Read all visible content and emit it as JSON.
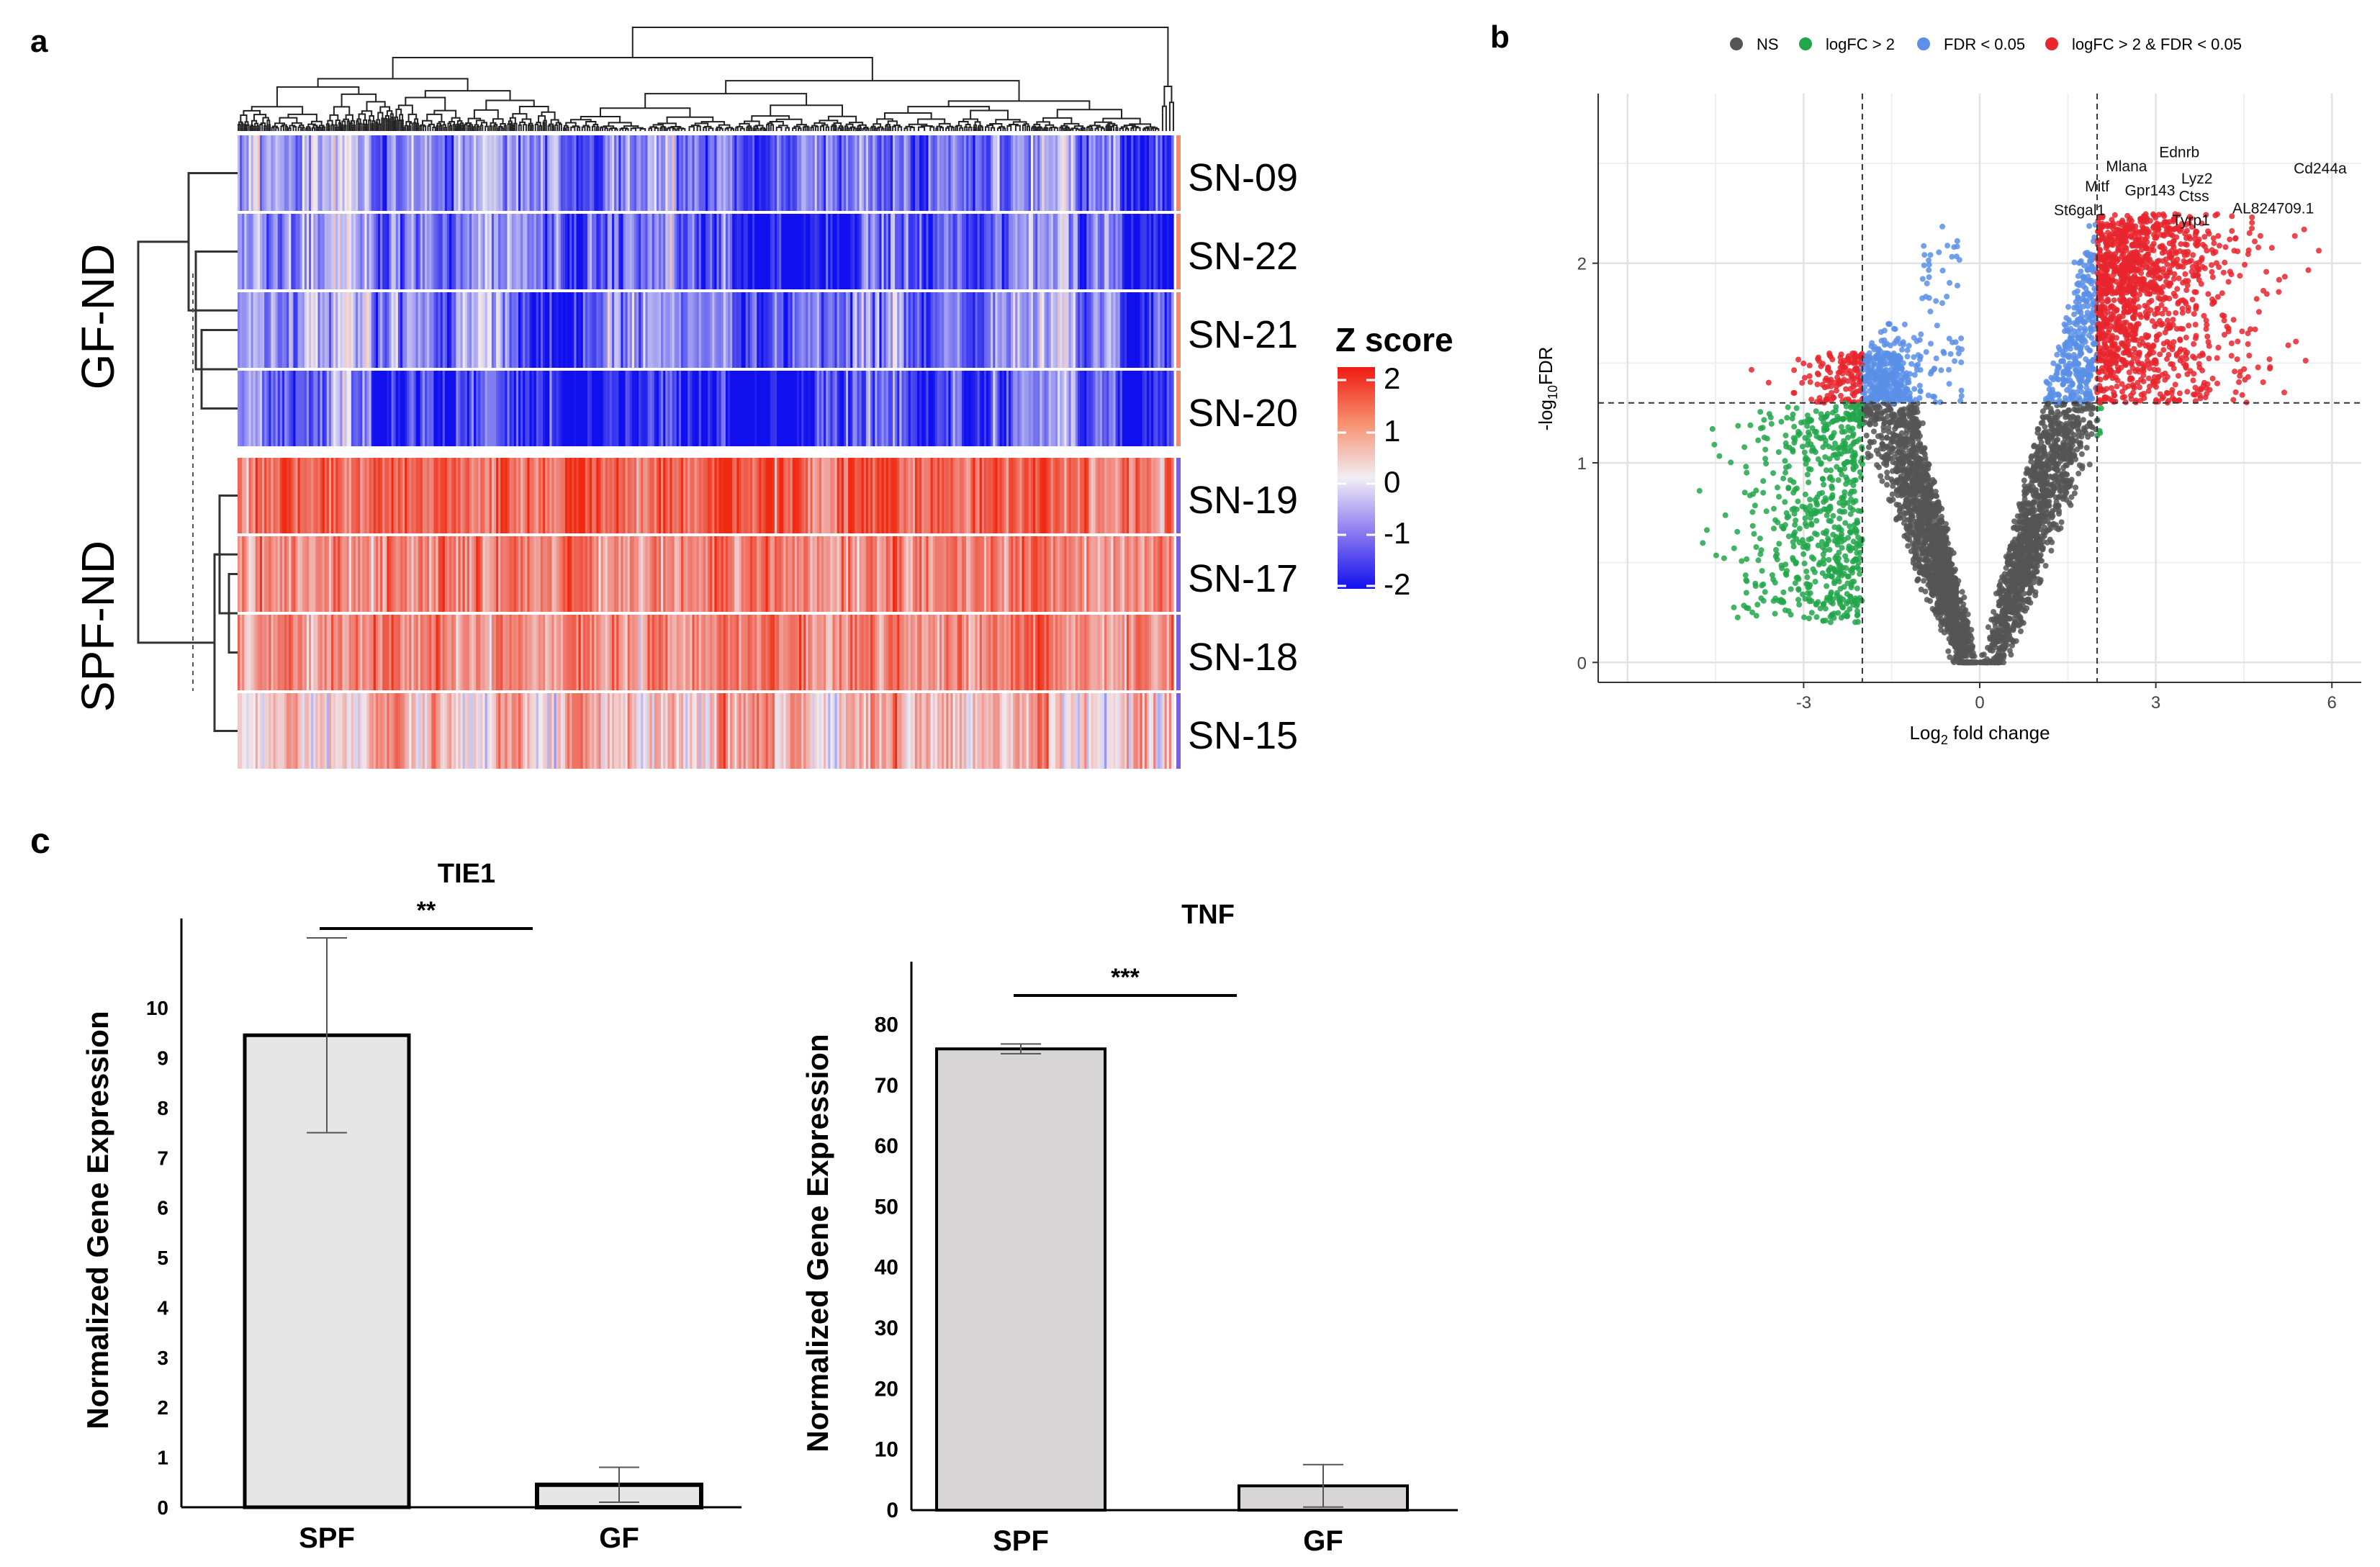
{
  "colors": {
    "ns": "#555555",
    "logfc": "#22a64a",
    "fdr": "#5b8fe8",
    "both": "#e8262e",
    "bar_fill": "#e6e6e6",
    "bar_fill2": "#d7d5d5",
    "heat_low": "#1010ee",
    "heat_mid": "#f0ecf2",
    "heat_high": "#ef2a10"
  },
  "panels": {
    "a": "a",
    "b": "b",
    "c": "c"
  },
  "chart_data": [
    {
      "panel": "a",
      "type": "heatmap",
      "rows": [
        "SN-09",
        "SN-22",
        "SN-21",
        "SN-20",
        "SN-19",
        "SN-17",
        "SN-18",
        "SN-15"
      ],
      "groups": [
        {
          "label": "GF-ND",
          "rows": [
            "SN-09",
            "SN-22",
            "SN-21",
            "SN-20"
          ]
        },
        {
          "label": "SPF-ND",
          "rows": [
            "SN-19",
            "SN-17",
            "SN-18",
            "SN-15"
          ]
        }
      ],
      "row_mean_z": [
        -0.9,
        -1.05,
        -0.9,
        -1.2,
        1.45,
        1.1,
        1.05,
        0.55
      ],
      "legend": {
        "title": "Z score",
        "ticks": [
          "2",
          "1",
          "0",
          "-1",
          "-2"
        ],
        "range": [
          -2,
          2
        ]
      }
    },
    {
      "panel": "b",
      "type": "scatter",
      "xlabel": "Log",
      "xlabel_sub": "2",
      "xlabel_tail": " fold change",
      "ylabel": "-log",
      "ylabel_sub": "10",
      "ylabel_tail": "FDR",
      "xlim": [
        -6.5,
        6.5
      ],
      "ylim": [
        -0.1,
        2.85
      ],
      "xticks": [
        -3,
        0,
        3,
        6
      ],
      "yticks": [
        0,
        1,
        2
      ],
      "xtick_labels": [
        "-3",
        "0",
        "3",
        "6"
      ],
      "ytick_labels": [
        "0",
        "1",
        "2"
      ],
      "thresholds": {
        "logfc": [
          -2,
          2
        ],
        "fdr": 1.3
      },
      "legend": [
        {
          "label": "NS",
          "key": "ns"
        },
        {
          "label": "logFC > 2",
          "key": "logfc"
        },
        {
          "label": "FDR < 0.05",
          "key": "fdr"
        },
        {
          "label": "logFC > 2 & FDR < 0.05",
          "key": "both"
        }
      ],
      "labels": [
        {
          "text": "Ednrb",
          "x": 3.4,
          "y": 2.53
        },
        {
          "text": "Mlana",
          "x": 2.5,
          "y": 2.46
        },
        {
          "text": "Cd244a",
          "x": 5.8,
          "y": 2.45
        },
        {
          "text": "Lyz2",
          "x": 3.7,
          "y": 2.4
        },
        {
          "text": "Mitf",
          "x": 2.0,
          "y": 2.36
        },
        {
          "text": "Gpr143",
          "x": 2.9,
          "y": 2.34
        },
        {
          "text": "Ctss",
          "x": 3.65,
          "y": 2.31
        },
        {
          "text": "AL824709.1",
          "x": 5.0,
          "y": 2.25
        },
        {
          "text": "St6gal1",
          "x": 1.7,
          "y": 2.24
        },
        {
          "text": "Tyrp1",
          "x": 3.6,
          "y": 2.19
        }
      ]
    },
    {
      "panel": "c",
      "type": "bar",
      "title": "TIE1",
      "categories": [
        "SPF",
        "GF"
      ],
      "values": [
        9.45,
        0.45
      ],
      "errors": [
        1.95,
        0.35
      ],
      "ylabel": "Normalized Gene Expression",
      "ylim": [
        0,
        11.5
      ],
      "yticks": [
        0,
        1,
        2,
        3,
        4,
        5,
        6,
        7,
        8,
        9,
        10
      ],
      "ytick_labels": [
        "0",
        "1",
        "2",
        "3",
        "4",
        "5",
        "6",
        "7",
        "8",
        "9",
        "10"
      ],
      "significance": "**"
    },
    {
      "panel": "c",
      "type": "bar",
      "title": "TNF",
      "categories": [
        "SPF",
        "GF"
      ],
      "values": [
        76,
        4
      ],
      "errors": [
        0.8,
        3.5
      ],
      "ylabel": "Normalized Gene Expression",
      "ylim": [
        0,
        88
      ],
      "yticks": [
        0,
        10,
        20,
        30,
        40,
        50,
        60,
        70,
        80
      ],
      "ytick_labels": [
        "0",
        "10",
        "20",
        "30",
        "40",
        "50",
        "60",
        "70",
        "80"
      ],
      "significance": "***"
    }
  ]
}
